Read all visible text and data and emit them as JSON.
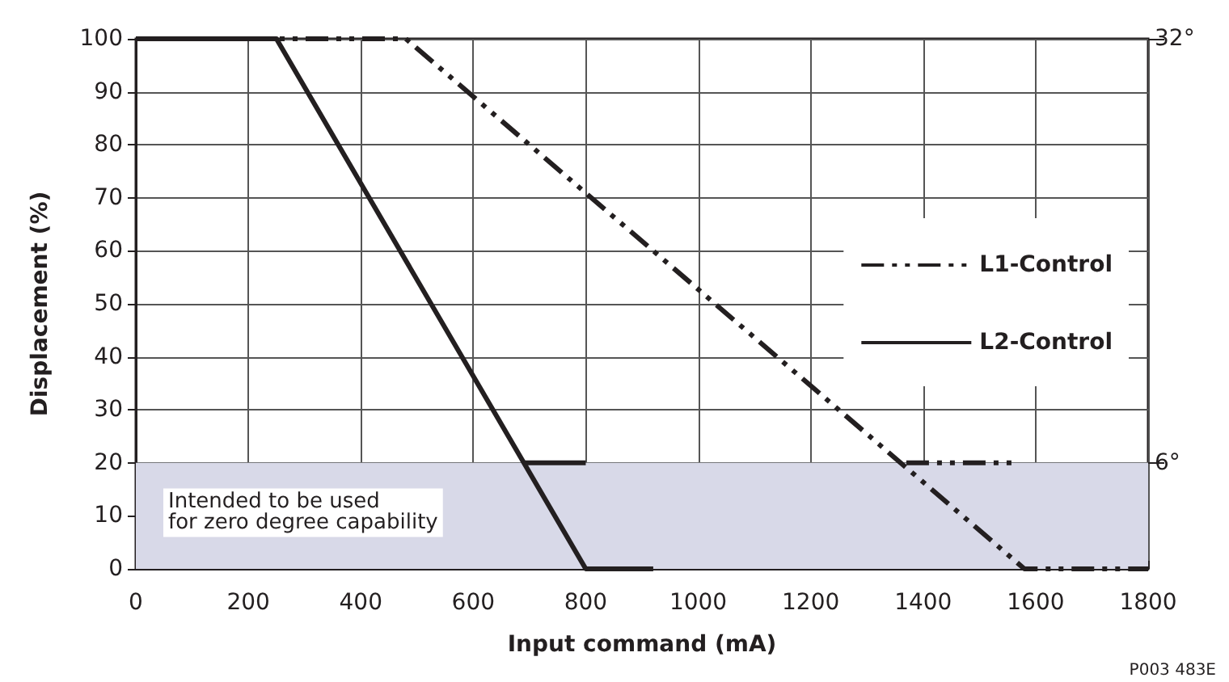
{
  "chart_data": {
    "type": "line",
    "xlabel": "Input command (mA)",
    "ylabel": "Displacement (%)",
    "series": [
      {
        "name": "L1-Control",
        "color": "#231f20",
        "line_style": "dashed",
        "x": [
          0,
          480,
          1580,
          1800
        ],
        "values": [
          100,
          100,
          0,
          0
        ]
      },
      {
        "name": "L2-Control",
        "color": "#231f20",
        "line_style": "solid",
        "x": [
          0,
          250,
          800,
          920
        ],
        "values": [
          100,
          100,
          0,
          0
        ]
      },
      {
        "color": "#231f20",
        "line_style": "solid",
        "x": [
          690,
          800
        ],
        "values": [
          20,
          20
        ]
      },
      {
        "color": "#231f20",
        "line_style": "dashed",
        "x": [
          1370,
          1560
        ],
        "values": [
          20,
          20
        ]
      }
    ],
    "xlim": [
      0,
      1800
    ],
    "xticks": [
      0,
      200,
      400,
      600,
      800,
      1000,
      1200,
      1400,
      1600,
      1800
    ],
    "ylim": [
      0,
      100
    ],
    "yticks": [
      0,
      10,
      20,
      30,
      40,
      50,
      60,
      70,
      80,
      90,
      100
    ],
    "y2lim": [
      -0.5,
      32
    ],
    "y2ticks": [
      {
        "value": 6,
        "label": "6°"
      },
      {
        "value": 32,
        "label": "32°"
      }
    ],
    "bands": [
      {
        "axis": "y",
        "from": 0,
        "to": 20,
        "label": "Intended to be used\nfor zero degree capability",
        "color": "#d8d9e8"
      }
    ],
    "annotations": [
      "P003 483E"
    ],
    "grid": true,
    "legend": "right",
    "marker": "none"
  }
}
